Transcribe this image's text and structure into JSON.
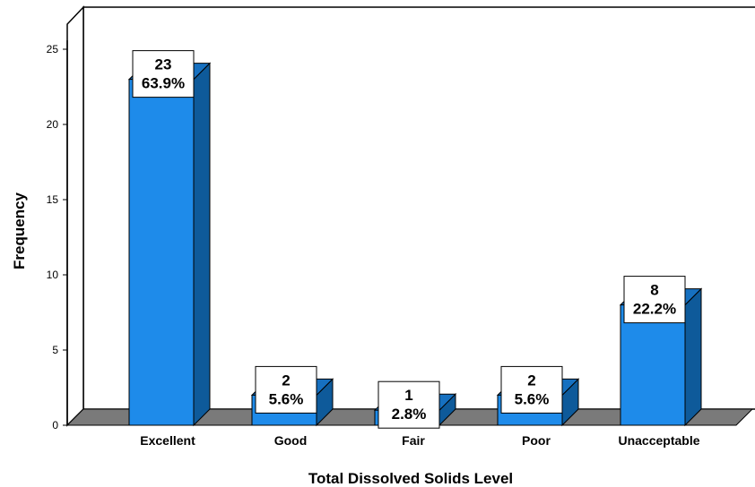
{
  "chart_data": {
    "type": "bar",
    "categories": [
      "Excellent",
      "Good",
      "Fair",
      "Poor",
      "Unacceptable"
    ],
    "values": [
      23,
      2,
      1,
      2,
      8
    ],
    "percent_labels": [
      "63.9%",
      "5.6%",
      "2.8%",
      "5.6%",
      "22.2%"
    ],
    "xlabel": "Total Dissolved Solids Level",
    "ylabel": "Frequency",
    "ylim": [
      0,
      25
    ],
    "yticks": [
      0,
      5,
      10,
      15,
      20,
      25
    ],
    "style": "3d",
    "grid": false,
    "legend": "none",
    "colors": {
      "bar_front": "#1E8BEA",
      "bar_side": "#0E5A9A",
      "bar_top": "#1670C0",
      "floor": "#7A7A7A",
      "back_wall": "#ffffff",
      "side_wall": "#ffffff"
    }
  }
}
